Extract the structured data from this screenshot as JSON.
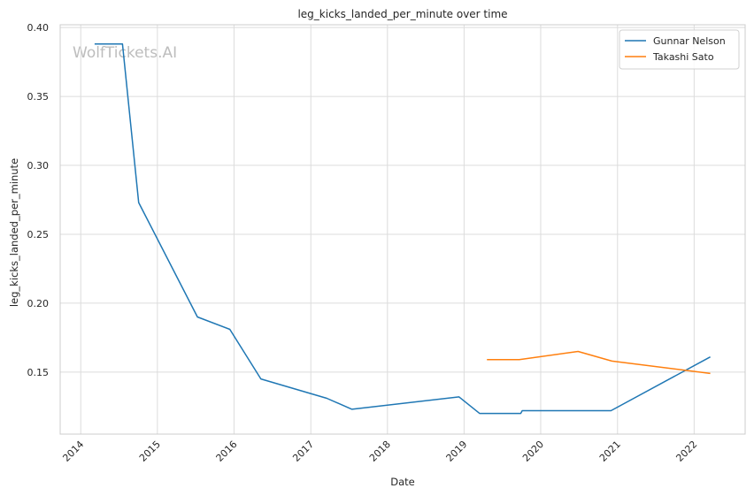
{
  "chart_data": {
    "type": "line",
    "title": "leg_kicks_landed_per_minute over time",
    "xlabel": "Date",
    "ylabel": "leg_kicks_landed_per_minute",
    "watermark": "WolfTickets.AI",
    "grid": true,
    "legend_position": "top-right",
    "xlim": [
      "2013-09-25",
      "2022-09-01"
    ],
    "ylim": [
      0.105,
      0.402
    ],
    "x_ticks": [
      "2014-01-01",
      "2015-01-01",
      "2016-01-01",
      "2017-01-01",
      "2018-01-01",
      "2019-01-01",
      "2020-01-01",
      "2021-01-01",
      "2022-01-01"
    ],
    "x_tick_labels": [
      "2014",
      "2015",
      "2016",
      "2017",
      "2018",
      "2019",
      "2020",
      "2021",
      "2022"
    ],
    "y_ticks": [
      0.15,
      0.2,
      0.25,
      0.3,
      0.35,
      0.4
    ],
    "y_tick_labels": [
      "0.15",
      "0.20",
      "0.25",
      "0.30",
      "0.35",
      "0.40"
    ],
    "series": [
      {
        "name": "Gunnar Nelson",
        "color": "#1f77b4",
        "points": [
          [
            "2014-03-08",
            0.388
          ],
          [
            "2014-07-19",
            0.388
          ],
          [
            "2014-10-04",
            0.273
          ],
          [
            "2015-07-11",
            0.19
          ],
          [
            "2015-12-12",
            0.181
          ],
          [
            "2016-05-08",
            0.145
          ],
          [
            "2017-03-18",
            0.131
          ],
          [
            "2017-07-16",
            0.123
          ],
          [
            "2018-12-08",
            0.132
          ],
          [
            "2019-03-16",
            0.12
          ],
          [
            "2019-09-28",
            0.12
          ],
          [
            "2019-10-05",
            0.122
          ],
          [
            "2020-12-01",
            0.122
          ],
          [
            "2022-03-19",
            0.161
          ]
        ]
      },
      {
        "name": "Takashi Sato",
        "color": "#ff7f0e",
        "points": [
          [
            "2019-04-20",
            0.159
          ],
          [
            "2019-09-21",
            0.159
          ],
          [
            "2020-06-27",
            0.165
          ],
          [
            "2020-12-05",
            0.158
          ],
          [
            "2022-03-19",
            0.149
          ]
        ]
      }
    ]
  }
}
